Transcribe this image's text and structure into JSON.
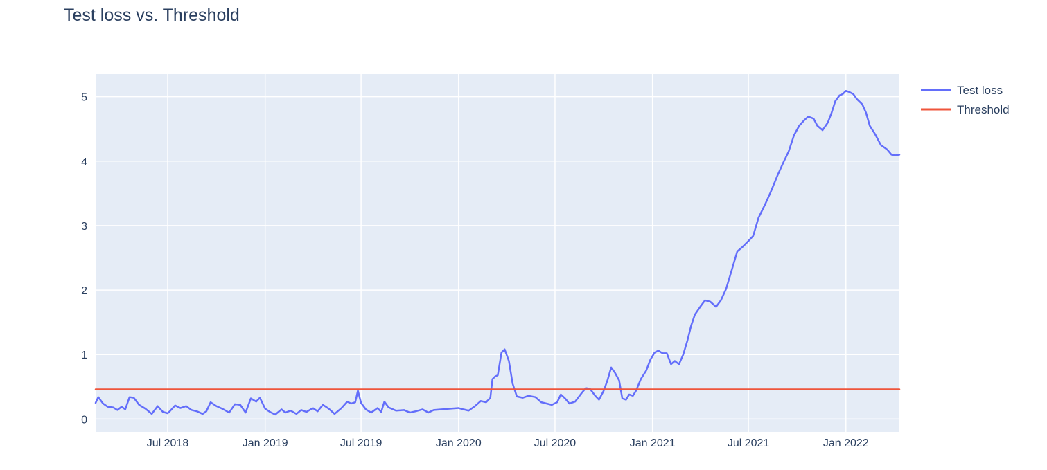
{
  "chart_data": {
    "type": "line",
    "title": "Test loss vs. Threshold",
    "xlabel": "",
    "ylabel": "",
    "x_range": [
      "2018-02-15",
      "2022-04-12"
    ],
    "ylim": [
      -0.2,
      5.35
    ],
    "y_ticks": [
      0,
      1,
      2,
      3,
      4,
      5
    ],
    "x_ticks": [
      {
        "date": "2018-07-01",
        "label": "Jul 2018"
      },
      {
        "date": "2019-01-01",
        "label": "Jan 2019"
      },
      {
        "date": "2019-07-01",
        "label": "Jul 2019"
      },
      {
        "date": "2020-01-01",
        "label": "Jan 2020"
      },
      {
        "date": "2020-07-01",
        "label": "Jul 2020"
      },
      {
        "date": "2021-01-01",
        "label": "Jan 2021"
      },
      {
        "date": "2021-07-01",
        "label": "Jul 2021"
      },
      {
        "date": "2022-01-01",
        "label": "Jan 2022"
      }
    ],
    "grid": true,
    "legend_position": "top-right",
    "plot_background": "#e5ecf6",
    "series": [
      {
        "name": "Test loss",
        "color": "#636efa",
        "points": [
          [
            "2018-02-15",
            0.25
          ],
          [
            "2018-02-20",
            0.34
          ],
          [
            "2018-03-01",
            0.24
          ],
          [
            "2018-03-10",
            0.19
          ],
          [
            "2018-03-20",
            0.18
          ],
          [
            "2018-03-28",
            0.14
          ],
          [
            "2018-04-05",
            0.19
          ],
          [
            "2018-04-12",
            0.15
          ],
          [
            "2018-04-20",
            0.34
          ],
          [
            "2018-04-28",
            0.33
          ],
          [
            "2018-05-08",
            0.22
          ],
          [
            "2018-05-20",
            0.16
          ],
          [
            "2018-06-01",
            0.08
          ],
          [
            "2018-06-12",
            0.2
          ],
          [
            "2018-06-22",
            0.11
          ],
          [
            "2018-07-01",
            0.09
          ],
          [
            "2018-07-05",
            0.12
          ],
          [
            "2018-07-15",
            0.21
          ],
          [
            "2018-07-25",
            0.17
          ],
          [
            "2018-08-05",
            0.2
          ],
          [
            "2018-08-15",
            0.14
          ],
          [
            "2018-08-25",
            0.12
          ],
          [
            "2018-09-05",
            0.08
          ],
          [
            "2018-09-12",
            0.12
          ],
          [
            "2018-09-20",
            0.26
          ],
          [
            "2018-10-01",
            0.2
          ],
          [
            "2018-10-12",
            0.16
          ],
          [
            "2018-10-25",
            0.1
          ],
          [
            "2018-11-05",
            0.23
          ],
          [
            "2018-11-15",
            0.22
          ],
          [
            "2018-11-25",
            0.1
          ],
          [
            "2018-12-05",
            0.32
          ],
          [
            "2018-12-15",
            0.27
          ],
          [
            "2018-12-22",
            0.33
          ],
          [
            "2019-01-01",
            0.16
          ],
          [
            "2019-01-10",
            0.11
          ],
          [
            "2019-01-20",
            0.07
          ],
          [
            "2019-02-01",
            0.15
          ],
          [
            "2019-02-08",
            0.1
          ],
          [
            "2019-02-18",
            0.13
          ],
          [
            "2019-03-01",
            0.08
          ],
          [
            "2019-03-10",
            0.14
          ],
          [
            "2019-03-20",
            0.11
          ],
          [
            "2019-04-01",
            0.17
          ],
          [
            "2019-04-10",
            0.12
          ],
          [
            "2019-04-20",
            0.22
          ],
          [
            "2019-05-01",
            0.16
          ],
          [
            "2019-05-12",
            0.08
          ],
          [
            "2019-05-25",
            0.17
          ],
          [
            "2019-06-05",
            0.27
          ],
          [
            "2019-06-12",
            0.24
          ],
          [
            "2019-06-20",
            0.26
          ],
          [
            "2019-06-25",
            0.44
          ],
          [
            "2019-07-01",
            0.25
          ],
          [
            "2019-07-10",
            0.15
          ],
          [
            "2019-07-20",
            0.1
          ],
          [
            "2019-08-01",
            0.17
          ],
          [
            "2019-08-08",
            0.11
          ],
          [
            "2019-08-14",
            0.27
          ],
          [
            "2019-08-22",
            0.18
          ],
          [
            "2019-09-05",
            0.13
          ],
          [
            "2019-09-20",
            0.14
          ],
          [
            "2019-10-01",
            0.1
          ],
          [
            "2019-10-12",
            0.12
          ],
          [
            "2019-10-25",
            0.15
          ],
          [
            "2019-11-05",
            0.1
          ],
          [
            "2019-11-15",
            0.14
          ],
          [
            "2019-12-01",
            0.15
          ],
          [
            "2019-12-15",
            0.16
          ],
          [
            "2020-01-01",
            0.17
          ],
          [
            "2020-01-10",
            0.15
          ],
          [
            "2020-01-20",
            0.13
          ],
          [
            "2020-02-01",
            0.2
          ],
          [
            "2020-02-12",
            0.28
          ],
          [
            "2020-02-22",
            0.26
          ],
          [
            "2020-03-01",
            0.33
          ],
          [
            "2020-03-05",
            0.62
          ],
          [
            "2020-03-10",
            0.66
          ],
          [
            "2020-03-15",
            0.68
          ],
          [
            "2020-03-22",
            1.03
          ],
          [
            "2020-03-28",
            1.08
          ],
          [
            "2020-04-05",
            0.9
          ],
          [
            "2020-04-12",
            0.55
          ],
          [
            "2020-04-20",
            0.35
          ],
          [
            "2020-05-01",
            0.33
          ],
          [
            "2020-05-12",
            0.36
          ],
          [
            "2020-05-25",
            0.34
          ],
          [
            "2020-06-05",
            0.26
          ],
          [
            "2020-06-15",
            0.24
          ],
          [
            "2020-06-25",
            0.22
          ],
          [
            "2020-07-05",
            0.26
          ],
          [
            "2020-07-12",
            0.38
          ],
          [
            "2020-07-20",
            0.32
          ],
          [
            "2020-07-28",
            0.24
          ],
          [
            "2020-08-08",
            0.27
          ],
          [
            "2020-08-20",
            0.4
          ],
          [
            "2020-08-28",
            0.48
          ],
          [
            "2020-09-05",
            0.47
          ],
          [
            "2020-09-15",
            0.36
          ],
          [
            "2020-09-22",
            0.3
          ],
          [
            "2020-10-01",
            0.44
          ],
          [
            "2020-10-08",
            0.6
          ],
          [
            "2020-10-15",
            0.8
          ],
          [
            "2020-10-22",
            0.72
          ],
          [
            "2020-10-30",
            0.6
          ],
          [
            "2020-11-05",
            0.32
          ],
          [
            "2020-11-12",
            0.3
          ],
          [
            "2020-11-18",
            0.38
          ],
          [
            "2020-11-25",
            0.36
          ],
          [
            "2020-12-01",
            0.44
          ],
          [
            "2020-12-10",
            0.62
          ],
          [
            "2020-12-20",
            0.75
          ],
          [
            "2020-12-28",
            0.92
          ],
          [
            "2021-01-05",
            1.03
          ],
          [
            "2021-01-12",
            1.06
          ],
          [
            "2021-01-20",
            1.02
          ],
          [
            "2021-01-28",
            1.02
          ],
          [
            "2021-02-05",
            0.85
          ],
          [
            "2021-02-12",
            0.9
          ],
          [
            "2021-02-20",
            0.85
          ],
          [
            "2021-02-28",
            1.0
          ],
          [
            "2021-03-08",
            1.22
          ],
          [
            "2021-03-15",
            1.45
          ],
          [
            "2021-03-22",
            1.62
          ],
          [
            "2021-04-01",
            1.74
          ],
          [
            "2021-04-10",
            1.84
          ],
          [
            "2021-04-20",
            1.82
          ],
          [
            "2021-05-01",
            1.74
          ],
          [
            "2021-05-10",
            1.84
          ],
          [
            "2021-05-20",
            2.02
          ],
          [
            "2021-06-01",
            2.35
          ],
          [
            "2021-06-10",
            2.6
          ],
          [
            "2021-06-20",
            2.67
          ],
          [
            "2021-07-01",
            2.76
          ],
          [
            "2021-07-10",
            2.84
          ],
          [
            "2021-07-20",
            3.12
          ],
          [
            "2021-08-01",
            3.32
          ],
          [
            "2021-08-12",
            3.52
          ],
          [
            "2021-08-25",
            3.78
          ],
          [
            "2021-09-05",
            3.98
          ],
          [
            "2021-09-15",
            4.15
          ],
          [
            "2021-09-25",
            4.4
          ],
          [
            "2021-10-05",
            4.55
          ],
          [
            "2021-10-15",
            4.64
          ],
          [
            "2021-10-22",
            4.69
          ],
          [
            "2021-11-01",
            4.66
          ],
          [
            "2021-11-08",
            4.55
          ],
          [
            "2021-11-18",
            4.48
          ],
          [
            "2021-11-28",
            4.6
          ],
          [
            "2021-12-05",
            4.75
          ],
          [
            "2021-12-12",
            4.93
          ],
          [
            "2021-12-20",
            5.02
          ],
          [
            "2021-12-26",
            5.04
          ],
          [
            "2022-01-01",
            5.09
          ],
          [
            "2022-01-08",
            5.07
          ],
          [
            "2022-01-15",
            5.04
          ],
          [
            "2022-01-22",
            4.96
          ],
          [
            "2022-02-01",
            4.88
          ],
          [
            "2022-02-08",
            4.75
          ],
          [
            "2022-02-15",
            4.55
          ],
          [
            "2022-02-25",
            4.42
          ],
          [
            "2022-03-08",
            4.25
          ],
          [
            "2022-03-20",
            4.18
          ],
          [
            "2022-03-28",
            4.1
          ],
          [
            "2022-04-05",
            4.09
          ],
          [
            "2022-04-12",
            4.1
          ]
        ]
      },
      {
        "name": "Threshold",
        "color": "#ef553b",
        "points": [
          [
            "2018-02-15",
            0.46
          ],
          [
            "2022-04-12",
            0.46
          ]
        ]
      }
    ]
  }
}
